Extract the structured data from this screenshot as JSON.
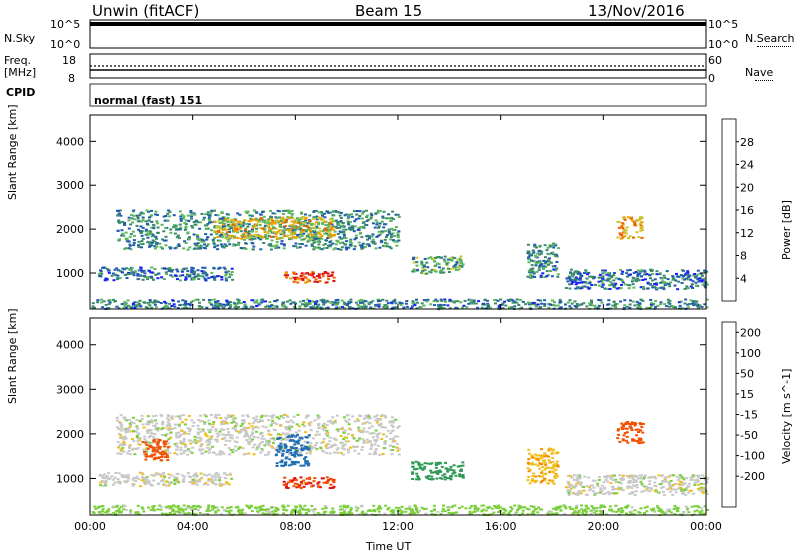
{
  "header": {
    "station": "Unwin (fitACF)",
    "beam": "Beam 15",
    "date": "13/Nov/2016"
  },
  "status": {
    "nsky_label": "N.Sky",
    "nsearch_label": "N.Search",
    "freq_label": "Freq.",
    "freq_unit": "[MHz]",
    "nave_label": "Nave",
    "cpid_label": "CPID",
    "cpid_value": "normal (fast) 151",
    "noise_ticks_left": [
      "10^5",
      "10^0"
    ],
    "noise_ticks_right": [
      "10^5",
      "10^0"
    ],
    "freq_ticks": [
      "18",
      "8"
    ],
    "nave_ticks": [
      "60",
      "0"
    ]
  },
  "chart_data": [
    {
      "type": "heatmap",
      "name": "power",
      "ylabel": "Slant Range [km]",
      "xlabel": "Time UT",
      "colorbar_label": "Power [dB]",
      "x_ticks": [
        "00:00",
        "04:00",
        "08:00",
        "12:00",
        "16:00",
        "20:00",
        "00:00"
      ],
      "y_ticks": [
        1000,
        2000,
        3000,
        4000
      ],
      "ylim": [
        180,
        4600
      ],
      "xlim_hours": [
        0,
        24
      ],
      "colorbar_ticks": [
        4,
        8,
        12,
        16,
        20,
        24,
        28
      ],
      "colorbar_range": [
        0,
        32
      ],
      "colorbar_colors": [
        "#1b1bff",
        "#1f5bb0",
        "#3a8a6a",
        "#5db85d",
        "#c8c832",
        "#f0a000",
        "#f06000",
        "#e01010"
      ],
      "regions": [
        {
          "t": [
            1.0,
            12.0
          ],
          "r": [
            1550,
            2450
          ],
          "v": 10
        },
        {
          "t": [
            4.8,
            9.5
          ],
          "r": [
            1800,
            2300
          ],
          "v": 19
        },
        {
          "t": [
            7.5,
            9.5
          ],
          "r": [
            800,
            1050
          ],
          "v": 28
        },
        {
          "t": [
            0.3,
            5.5
          ],
          "r": [
            850,
            1150
          ],
          "v": 8
        },
        {
          "t": [
            12.5,
            14.5
          ],
          "r": [
            1000,
            1400
          ],
          "v": 12
        },
        {
          "t": [
            17.0,
            18.2
          ],
          "r": [
            900,
            1700
          ],
          "v": 9
        },
        {
          "t": [
            18.5,
            24.0
          ],
          "r": [
            650,
            1100
          ],
          "v": 8
        },
        {
          "t": [
            20.5,
            21.5
          ],
          "r": [
            1800,
            2300
          ],
          "v": 22
        },
        {
          "t": [
            0.0,
            24.0
          ],
          "r": [
            200,
            420
          ],
          "v": 9
        }
      ]
    },
    {
      "type": "heatmap",
      "name": "velocity",
      "ylabel": "Slant Range [km]",
      "xlabel": "Time UT",
      "colorbar_label": "Velocity [m s^-1]",
      "x_ticks": [
        "00:00",
        "04:00",
        "08:00",
        "12:00",
        "16:00",
        "20:00",
        "00:00"
      ],
      "y_ticks": [
        1000,
        2000,
        3000,
        4000
      ],
      "ylim": [
        180,
        4600
      ],
      "xlim_hours": [
        0,
        24
      ],
      "colorbar_ticks": [
        200,
        100,
        50,
        15,
        -15,
        -50,
        -100,
        -200
      ],
      "colorbar_colors": [
        "#1b1bc8",
        "#1f6eb4",
        "#2e9a55",
        "#7ad03a",
        "#c8c8c8",
        "#f0c020",
        "#f08c00",
        "#f05000",
        "#e01010"
      ],
      "regions": [
        {
          "t": [
            1.0,
            12.0
          ],
          "r": [
            1550,
            2450
          ],
          "v": 0
        },
        {
          "t": [
            7.5,
            9.5
          ],
          "r": [
            800,
            1050
          ],
          "v": -200
        },
        {
          "t": [
            2.0,
            3.0
          ],
          "r": [
            1400,
            1900
          ],
          "v": -150
        },
        {
          "t": [
            0.3,
            5.5
          ],
          "r": [
            850,
            1150
          ],
          "v": 0
        },
        {
          "t": [
            7.2,
            8.5
          ],
          "r": [
            1300,
            2000
          ],
          "v": 150
        },
        {
          "t": [
            12.5,
            14.5
          ],
          "r": [
            1000,
            1400
          ],
          "v": 80
        },
        {
          "t": [
            17.0,
            18.2
          ],
          "r": [
            900,
            1700
          ],
          "v": -40
        },
        {
          "t": [
            18.5,
            24.0
          ],
          "r": [
            650,
            1100
          ],
          "v": 0
        },
        {
          "t": [
            20.5,
            21.5
          ],
          "r": [
            1800,
            2300
          ],
          "v": -160
        },
        {
          "t": [
            0.0,
            24.0
          ],
          "r": [
            200,
            420
          ],
          "v": 30
        }
      ]
    }
  ]
}
